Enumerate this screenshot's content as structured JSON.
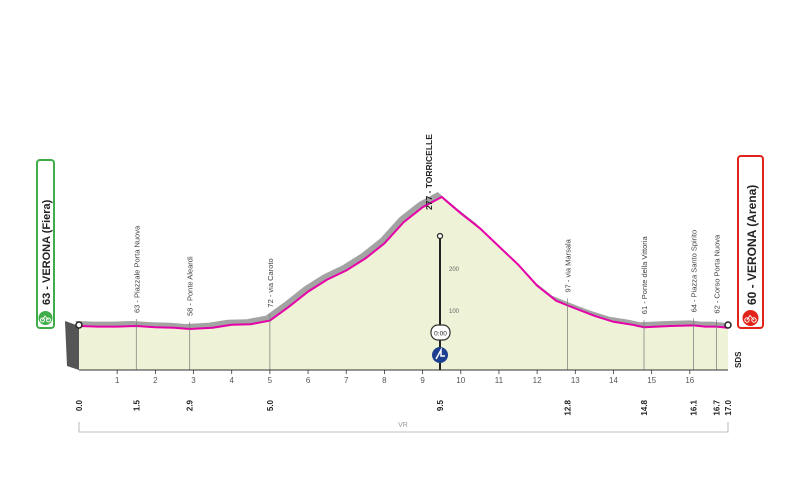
{
  "start": {
    "label": "63 - VERONA (Fiera)",
    "km": "0.0",
    "badge_color": "#3fae49"
  },
  "finish": {
    "label": "60 - VERONA (Arena)",
    "km": "17.0",
    "badge_color": "#e2231a"
  },
  "summit": {
    "label": "277 - TORRICELLE",
    "km": "9.5",
    "time_bonus": "0:00"
  },
  "sds_label": "SDS",
  "vr_label": "VR",
  "altitude_labels": [
    "100",
    "200"
  ],
  "profile_colors": {
    "fill": "#eef2d7",
    "line": "#e600a8",
    "shadow": "#a3a3a3"
  },
  "chart_data": {
    "type": "area",
    "x_unit": "km",
    "y_unit": "m",
    "xlim": [
      0,
      17.0
    ],
    "ylim": [
      0,
      300
    ],
    "points": [
      [
        0,
        63
      ],
      [
        0.5,
        62
      ],
      [
        1.0,
        62
      ],
      [
        1.5,
        63
      ],
      [
        2.0,
        61
      ],
      [
        2.5,
        60
      ],
      [
        2.9,
        58
      ],
      [
        3.5,
        60
      ],
      [
        4.0,
        65
      ],
      [
        4.5,
        66
      ],
      [
        5.0,
        72
      ],
      [
        5.5,
        95
      ],
      [
        6.0,
        120
      ],
      [
        6.5,
        140
      ],
      [
        7.0,
        155
      ],
      [
        7.5,
        175
      ],
      [
        8.0,
        200
      ],
      [
        8.5,
        235
      ],
      [
        9.0,
        260
      ],
      [
        9.5,
        277
      ],
      [
        10.0,
        250
      ],
      [
        10.5,
        225
      ],
      [
        11.0,
        195
      ],
      [
        11.5,
        165
      ],
      [
        12.0,
        130
      ],
      [
        12.5,
        105
      ],
      [
        12.8,
        97
      ],
      [
        13.5,
        80
      ],
      [
        14.0,
        70
      ],
      [
        14.5,
        65
      ],
      [
        14.8,
        61
      ],
      [
        15.5,
        63
      ],
      [
        16.1,
        64
      ],
      [
        16.4,
        62
      ],
      [
        16.7,
        62
      ],
      [
        17.0,
        60
      ]
    ],
    "km_marks": [
      {
        "km": 1,
        "label": "1"
      },
      {
        "km": 2,
        "label": "2"
      },
      {
        "km": 3,
        "label": "3"
      },
      {
        "km": 4,
        "label": "4"
      },
      {
        "km": 5,
        "label": "5"
      },
      {
        "km": 6,
        "label": "6"
      },
      {
        "km": 7,
        "label": "7"
      },
      {
        "km": 8,
        "label": "8"
      },
      {
        "km": 9,
        "label": "9"
      },
      {
        "km": 10,
        "label": "10"
      },
      {
        "km": 11,
        "label": "11"
      },
      {
        "km": 12,
        "label": "12"
      },
      {
        "km": 13,
        "label": "13"
      },
      {
        "km": 14,
        "label": "14"
      },
      {
        "km": 15,
        "label": "15"
      },
      {
        "km": 16,
        "label": "16"
      }
    ],
    "waypoints": [
      {
        "km": 1.5,
        "km_label": "1.5",
        "place": "63 - Piazzale Porta Nuova"
      },
      {
        "km": 2.9,
        "km_label": "2.9",
        "place": "58 - Ponte Aleardi"
      },
      {
        "km": 5.0,
        "km_label": "5.0",
        "place": "72 - via Caroto"
      },
      {
        "km": 12.8,
        "km_label": "12.8",
        "place": "97 - via Marsala"
      },
      {
        "km": 14.8,
        "km_label": "14.8",
        "place": "61 - Ponte della Vittoria"
      },
      {
        "km": 16.1,
        "km_label": "16.1",
        "place": "64 - Piazza Santo Spirito"
      },
      {
        "km": 16.7,
        "km_label": "16.7",
        "place": "62 - Corso Porta Nuova"
      }
    ]
  }
}
